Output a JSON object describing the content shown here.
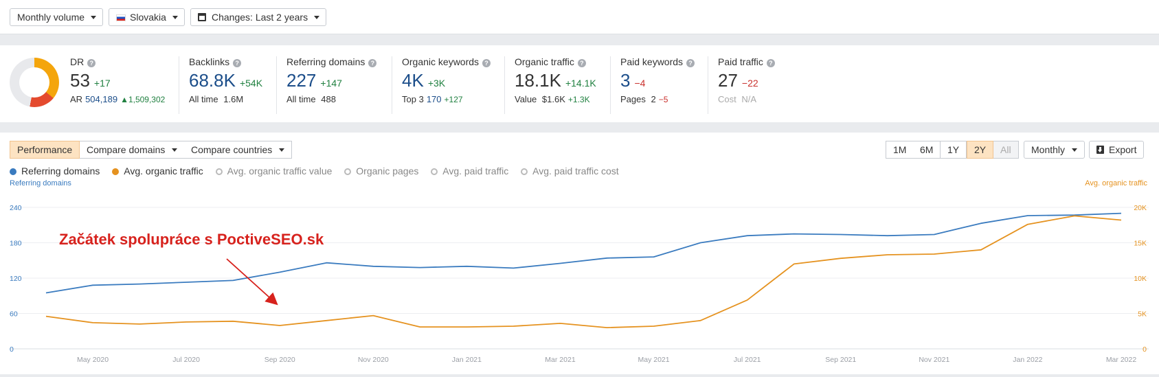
{
  "toolbar": {
    "volume_label": "Monthly volume",
    "country_label": "Slovakia",
    "changes_label": "Changes: Last 2 years"
  },
  "metrics": {
    "dr": {
      "label": "DR",
      "value": "53",
      "delta": "+17",
      "sub_label": "AR",
      "sub_value": "504,189",
      "sub_delta": "▲1,509,302"
    },
    "backlinks": {
      "label": "Backlinks",
      "value": "68.8K",
      "delta": "+54K",
      "sub_label": "All time",
      "sub_value": "1.6M"
    },
    "referring_domains": {
      "label": "Referring domains",
      "value": "227",
      "delta": "+147",
      "sub_label": "All time",
      "sub_value": "488"
    },
    "organic_keywords": {
      "label": "Organic keywords",
      "value": "4K",
      "delta": "+3K",
      "sub_label": "Top 3",
      "sub_value": "170",
      "sub_delta": "+127"
    },
    "organic_traffic": {
      "label": "Organic traffic",
      "value": "18.1K",
      "delta": "+14.1K",
      "sub_label": "Value",
      "sub_value": "$1.6K",
      "sub_delta": "+1.3K"
    },
    "paid_keywords": {
      "label": "Paid keywords",
      "value": "3",
      "delta": "−4",
      "sub_label": "Pages",
      "sub_value": "2",
      "sub_delta": "−5"
    },
    "paid_traffic": {
      "label": "Paid traffic",
      "value": "27",
      "delta": "−22",
      "sub_label": "Cost",
      "sub_value": "N/A"
    }
  },
  "chart_tabs": {
    "performance": "Performance",
    "compare_domains": "Compare domains",
    "compare_countries": "Compare countries"
  },
  "range_buttons": [
    "1M",
    "6M",
    "1Y",
    "2Y",
    "All"
  ],
  "interval_label": "Monthly",
  "export_label": "Export",
  "legend": [
    {
      "label": "Referring domains",
      "color": "#3a7bbf",
      "active": true
    },
    {
      "label": "Avg. organic traffic",
      "color": "#e5921f",
      "active": true
    },
    {
      "label": "Avg. organic traffic value",
      "active": false
    },
    {
      "label": "Organic pages",
      "active": false
    },
    {
      "label": "Avg. paid traffic",
      "active": false
    },
    {
      "label": "Avg. paid traffic cost",
      "active": false
    }
  ],
  "annotation": "Začátek spolupráce s PoctiveSEO.sk",
  "chart_data": {
    "type": "line",
    "x": [
      "Apr 2020",
      "May 2020",
      "Jun 2020",
      "Jul 2020",
      "Aug 2020",
      "Sep 2020",
      "Oct 2020",
      "Nov 2020",
      "Dec 2020",
      "Jan 2021",
      "Feb 2021",
      "Mar 2021",
      "Apr 2021",
      "May 2021",
      "Jun 2021",
      "Jul 2021",
      "Aug 2021",
      "Sep 2021",
      "Oct 2021",
      "Nov 2021",
      "Dec 2021",
      "Jan 2022",
      "Feb 2022",
      "Mar 2022"
    ],
    "x_tick_labels": [
      "May 2020",
      "Jul 2020",
      "Sep 2020",
      "Nov 2020",
      "Jan 2021",
      "Mar 2021",
      "May 2021",
      "Jul 2021",
      "Sep 2021",
      "Nov 2021",
      "Jan 2022",
      "Mar 2022"
    ],
    "series": [
      {
        "name": "Referring domains",
        "axis": "left",
        "color": "#3a7bbf",
        "values": [
          95,
          108,
          110,
          113,
          116,
          130,
          146,
          140,
          138,
          140,
          137,
          145,
          154,
          156,
          180,
          192,
          195,
          194,
          192,
          194,
          213,
          226,
          227,
          230
        ]
      },
      {
        "name": "Avg. organic traffic",
        "axis": "right",
        "color": "#e5921f",
        "values": [
          4600,
          3700,
          3500,
          3800,
          3900,
          3300,
          4000,
          4700,
          3100,
          3100,
          3200,
          3600,
          3000,
          3200,
          4000,
          6900,
          12000,
          12800,
          13300,
          13400,
          14000,
          17600,
          18800,
          18200
        ]
      }
    ],
    "y_left": {
      "label": "Referring domains",
      "ticks": [
        0,
        60,
        120,
        180,
        240
      ],
      "range": [
        0,
        240
      ]
    },
    "y_right": {
      "label": "Avg. organic traffic",
      "ticks": [
        "0",
        "5K",
        "10K",
        "15K",
        "20K"
      ],
      "range": [
        0,
        20000
      ]
    },
    "grid": true
  }
}
